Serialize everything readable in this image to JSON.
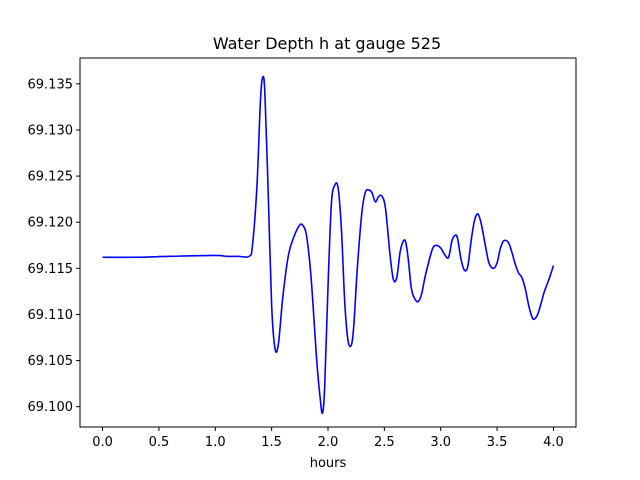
{
  "chart_data": {
    "type": "line",
    "title": "Water Depth h at gauge 525",
    "xlabel": "hours",
    "ylabel": "",
    "xlim": [
      -0.2,
      4.2
    ],
    "ylim": [
      69.0978,
      69.1378
    ],
    "x_ticks": [
      0.0,
      0.5,
      1.0,
      1.5,
      2.0,
      2.5,
      3.0,
      3.5,
      4.0
    ],
    "x_tick_labels": [
      "0.0",
      "0.5",
      "1.0",
      "1.5",
      "2.0",
      "2.5",
      "3.0",
      "3.5",
      "4.0"
    ],
    "y_ticks": [
      69.1,
      69.105,
      69.11,
      69.115,
      69.12,
      69.125,
      69.13,
      69.135
    ],
    "y_tick_labels": [
      "69.100",
      "69.105",
      "69.110",
      "69.115",
      "69.120",
      "69.125",
      "69.130",
      "69.135"
    ],
    "grid": false,
    "series": [
      {
        "color": "#0000ff",
        "x": [
          0.0,
          0.3,
          0.6,
          1.0,
          1.1,
          1.2,
          1.3,
          1.33,
          1.37,
          1.4,
          1.42,
          1.44,
          1.47,
          1.5,
          1.53,
          1.56,
          1.6,
          1.65,
          1.7,
          1.75,
          1.78,
          1.81,
          1.85,
          1.9,
          1.93,
          1.95,
          1.97,
          2.0,
          2.03,
          2.06,
          2.09,
          2.12,
          2.15,
          2.18,
          2.21,
          2.23,
          2.26,
          2.3,
          2.33,
          2.36,
          2.39,
          2.42,
          2.45,
          2.48,
          2.51,
          2.55,
          2.58,
          2.61,
          2.64,
          2.67,
          2.69,
          2.71,
          2.74,
          2.77,
          2.8,
          2.83,
          2.86,
          2.9,
          2.93,
          2.96,
          3.0,
          3.04,
          3.07,
          3.1,
          3.13,
          3.15,
          3.18,
          3.21,
          3.24,
          3.27,
          3.3,
          3.33,
          3.36,
          3.4,
          3.43,
          3.47,
          3.5,
          3.53,
          3.56,
          3.6,
          3.63,
          3.66,
          3.69,
          3.72,
          3.75,
          3.78,
          3.81,
          3.83,
          3.86,
          3.89,
          3.92,
          3.96,
          4.0
        ],
        "y": [
          69.1162,
          69.1162,
          69.1163,
          69.1164,
          69.1163,
          69.1163,
          69.1163,
          69.1175,
          69.124,
          69.133,
          69.1357,
          69.134,
          69.123,
          69.111,
          69.1063,
          69.1068,
          69.112,
          69.1165,
          69.1185,
          69.1197,
          69.1196,
          69.1185,
          69.114,
          69.105,
          69.101,
          69.0993,
          69.102,
          69.113,
          69.122,
          69.124,
          69.1237,
          69.119,
          69.111,
          69.107,
          69.1068,
          69.109,
          69.115,
          69.121,
          69.1232,
          69.1235,
          69.1232,
          69.1222,
          69.1228,
          69.1228,
          69.1215,
          69.1165,
          69.1138,
          69.114,
          69.1168,
          69.118,
          69.1178,
          69.1162,
          69.1128,
          69.1117,
          69.1114,
          69.1122,
          69.114,
          69.116,
          69.1172,
          69.1175,
          69.1172,
          69.1164,
          69.1162,
          69.118,
          69.1186,
          69.1182,
          69.116,
          69.1148,
          69.1152,
          69.118,
          69.1202,
          69.1209,
          69.1198,
          69.1172,
          69.1155,
          69.115,
          69.1156,
          69.1172,
          69.118,
          69.1178,
          69.1168,
          69.1155,
          69.1145,
          69.114,
          69.1128,
          69.111,
          69.1097,
          69.1095,
          69.11,
          69.1112,
          69.1125,
          69.1138,
          69.1153
        ]
      }
    ]
  }
}
